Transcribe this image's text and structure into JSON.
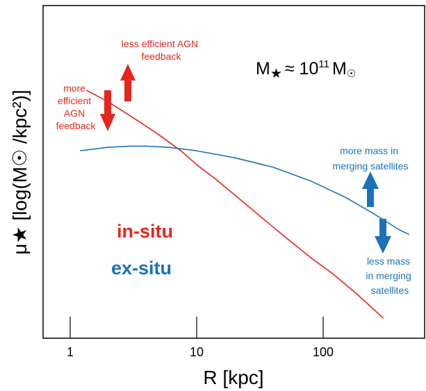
{
  "chart_data": {
    "type": "line",
    "xlabel": "R [kpc]",
    "ylabel": "μ★ [log(M☉ /kpc²)]",
    "x_scale": "log",
    "xlim": [
      0.6,
      600
    ],
    "x_ticks": [
      {
        "value": 1,
        "label": "1"
      },
      {
        "value": 10,
        "label": "10"
      },
      {
        "value": 100,
        "label": "100"
      }
    ],
    "y_ticks_labeled": false,
    "series": [
      {
        "name": "in-situ",
        "color": "#e8251b",
        "points": [
          [
            1.35,
            0.82
          ],
          [
            2,
            0.77
          ],
          [
            3,
            0.71
          ],
          [
            5,
            0.63
          ],
          [
            7.5,
            0.56
          ],
          [
            10,
            0.5
          ],
          [
            14,
            0.44
          ],
          [
            20,
            0.37
          ],
          [
            30,
            0.29
          ],
          [
            50,
            0.19
          ],
          [
            80,
            0.1
          ],
          [
            120,
            0.03
          ],
          [
            180,
            -0.05
          ],
          [
            300,
            -0.16
          ]
        ]
      },
      {
        "name": "ex-situ",
        "color": "#1a72b8",
        "points": [
          [
            1.2,
            0.56
          ],
          [
            2,
            0.575
          ],
          [
            3,
            0.58
          ],
          [
            4,
            0.58
          ],
          [
            6,
            0.575
          ],
          [
            10,
            0.56
          ],
          [
            20,
            0.53
          ],
          [
            40,
            0.49
          ],
          [
            80,
            0.43
          ],
          [
            150,
            0.36
          ],
          [
            250,
            0.29
          ],
          [
            400,
            0.22
          ],
          [
            480,
            0.2
          ]
        ]
      }
    ],
    "annotations": {
      "mass_label_base": "M",
      "mass_label_star": "★",
      "mass_label_approx": "≈ 10",
      "mass_label_exp": "11",
      "mass_label_unit": "M",
      "mass_label_sun": "☉",
      "agn_less": [
        "less efficient AGN",
        "feedback"
      ],
      "agn_more": [
        "more",
        "efficient",
        "AGN",
        "feedback"
      ],
      "sat_more": [
        "more mass in",
        "merging satellites"
      ],
      "sat_less": [
        "less mass",
        "in merging",
        "satellites"
      ],
      "legend_insitu": "in-situ",
      "legend_exsitu": "ex-situ"
    }
  }
}
